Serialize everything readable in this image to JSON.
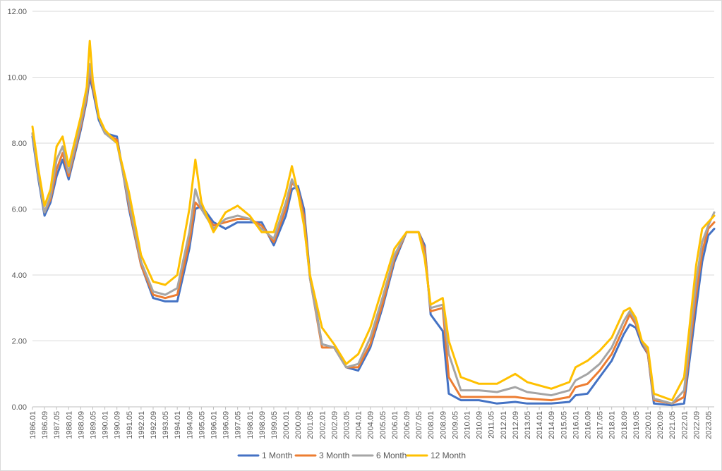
{
  "chart_data": {
    "type": "line",
    "title": "",
    "xlabel": "",
    "ylabel": "",
    "ylim": [
      0,
      12
    ],
    "yticks": [
      "0.00",
      "2.00",
      "4.00",
      "6.00",
      "8.00",
      "10.00",
      "12.00"
    ],
    "grid": "horizontal",
    "legend_position": "bottom",
    "x_start": "1986.01",
    "x_end": "2023.09",
    "xtick_labels": [
      "1986.01",
      "1986.09",
      "1987.05",
      "1988.01",
      "1988.09",
      "1989.05",
      "1990.01",
      "1990.09",
      "1991.05",
      "1992.01",
      "1992.09",
      "1993.05",
      "1994.01",
      "1994.09",
      "1995.05",
      "1996.01",
      "1996.09",
      "1997.05",
      "1998.01",
      "1998.09",
      "1999.05",
      "2000.01",
      "2000.09",
      "2001.05",
      "2002.01",
      "2002.09",
      "2003.05",
      "2004.01",
      "2004.09",
      "2005.05",
      "2006.01",
      "2006.09",
      "2007.05",
      "2008.01",
      "2008.09",
      "2009.05",
      "2010.01",
      "2010.09",
      "2011.05",
      "2012.01",
      "2012.09",
      "2013.05",
      "2014.01",
      "2014.09",
      "2015.05",
      "2016.01",
      "2016.09",
      "2017.05",
      "2018.01",
      "2018.09",
      "2019.05",
      "2020.01",
      "2020.09",
      "2021.05",
      "2022.01",
      "2022.09",
      "2023.05"
    ],
    "series": [
      {
        "name": "1 Month",
        "color": "#4472C4",
        "points": [
          [
            "1986.01",
            8.2
          ],
          [
            "1986.05",
            6.9
          ],
          [
            "1986.09",
            5.8
          ],
          [
            "1987.01",
            6.2
          ],
          [
            "1987.05",
            7.0
          ],
          [
            "1987.09",
            7.5
          ],
          [
            "1988.01",
            6.9
          ],
          [
            "1988.09",
            8.4
          ],
          [
            "1989.01",
            9.3
          ],
          [
            "1989.03",
            10.0
          ],
          [
            "1989.05",
            9.6
          ],
          [
            "1989.09",
            8.7
          ],
          [
            "1990.01",
            8.3
          ],
          [
            "1990.09",
            8.2
          ],
          [
            "1991.05",
            6.0
          ],
          [
            "1992.01",
            4.3
          ],
          [
            "1992.09",
            3.3
          ],
          [
            "1993.05",
            3.2
          ],
          [
            "1994.01",
            3.2
          ],
          [
            "1994.09",
            4.8
          ],
          [
            "1995.01",
            6.0
          ],
          [
            "1995.05",
            6.1
          ],
          [
            "1996.01",
            5.6
          ],
          [
            "1996.09",
            5.4
          ],
          [
            "1997.05",
            5.6
          ],
          [
            "1998.01",
            5.6
          ],
          [
            "1998.09",
            5.6
          ],
          [
            "1999.05",
            4.9
          ],
          [
            "2000.01",
            5.8
          ],
          [
            "2000.05",
            6.6
          ],
          [
            "2000.09",
            6.7
          ],
          [
            "2001.01",
            6.0
          ],
          [
            "2001.05",
            4.0
          ],
          [
            "2002.01",
            1.9
          ],
          [
            "2002.09",
            1.8
          ],
          [
            "2003.05",
            1.2
          ],
          [
            "2004.01",
            1.1
          ],
          [
            "2004.09",
            1.8
          ],
          [
            "2005.05",
            3.0
          ],
          [
            "2006.01",
            4.4
          ],
          [
            "2006.09",
            5.3
          ],
          [
            "2007.05",
            5.3
          ],
          [
            "2007.09",
            4.9
          ],
          [
            "2008.01",
            2.8
          ],
          [
            "2008.09",
            2.3
          ],
          [
            "2009.01",
            0.4
          ],
          [
            "2009.09",
            0.2
          ],
          [
            "2010.09",
            0.2
          ],
          [
            "2011.09",
            0.1
          ],
          [
            "2012.09",
            0.15
          ],
          [
            "2013.05",
            0.1
          ],
          [
            "2014.09",
            0.1
          ],
          [
            "2015.09",
            0.15
          ],
          [
            "2016.01",
            0.35
          ],
          [
            "2016.09",
            0.4
          ],
          [
            "2017.05",
            0.9
          ],
          [
            "2018.01",
            1.4
          ],
          [
            "2018.09",
            2.2
          ],
          [
            "2019.01",
            2.5
          ],
          [
            "2019.05",
            2.4
          ],
          [
            "2019.09",
            1.9
          ],
          [
            "2020.01",
            1.6
          ],
          [
            "2020.05",
            0.1
          ],
          [
            "2021.05",
            0.05
          ],
          [
            "2022.01",
            0.1
          ],
          [
            "2022.09",
            3.0
          ],
          [
            "2023.01",
            4.4
          ],
          [
            "2023.05",
            5.2
          ],
          [
            "2023.09",
            5.4
          ]
        ]
      },
      {
        "name": "3 Month",
        "color": "#ED7D31",
        "points": [
          [
            "1986.01",
            8.3
          ],
          [
            "1986.05",
            7.0
          ],
          [
            "1986.09",
            5.9
          ],
          [
            "1987.01",
            6.3
          ],
          [
            "1987.05",
            7.2
          ],
          [
            "1987.09",
            7.7
          ],
          [
            "1988.01",
            7.0
          ],
          [
            "1988.09",
            8.5
          ],
          [
            "1989.01",
            9.4
          ],
          [
            "1989.03",
            10.2
          ],
          [
            "1989.05",
            9.7
          ],
          [
            "1989.09",
            8.8
          ],
          [
            "1990.01",
            8.3
          ],
          [
            "1990.09",
            8.1
          ],
          [
            "1991.05",
            6.1
          ],
          [
            "1992.01",
            4.3
          ],
          [
            "1992.09",
            3.4
          ],
          [
            "1993.05",
            3.3
          ],
          [
            "1994.01",
            3.4
          ],
          [
            "1994.09",
            5.0
          ],
          [
            "1995.01",
            6.2
          ],
          [
            "1995.05",
            6.0
          ],
          [
            "1996.01",
            5.5
          ],
          [
            "1996.09",
            5.6
          ],
          [
            "1997.05",
            5.7
          ],
          [
            "1998.01",
            5.7
          ],
          [
            "1998.09",
            5.5
          ],
          [
            "1999.05",
            5.0
          ],
          [
            "2000.01",
            6.0
          ],
          [
            "2000.05",
            6.8
          ],
          [
            "2000.09",
            6.6
          ],
          [
            "2001.01",
            5.8
          ],
          [
            "2001.05",
            3.9
          ],
          [
            "2002.01",
            1.8
          ],
          [
            "2002.09",
            1.8
          ],
          [
            "2003.05",
            1.2
          ],
          [
            "2004.01",
            1.2
          ],
          [
            "2004.09",
            1.9
          ],
          [
            "2005.05",
            3.1
          ],
          [
            "2006.01",
            4.5
          ],
          [
            "2006.09",
            5.3
          ],
          [
            "2007.05",
            5.3
          ],
          [
            "2007.09",
            4.8
          ],
          [
            "2008.01",
            2.9
          ],
          [
            "2008.09",
            3.0
          ],
          [
            "2009.01",
            0.9
          ],
          [
            "2009.09",
            0.3
          ],
          [
            "2010.09",
            0.3
          ],
          [
            "2011.09",
            0.3
          ],
          [
            "2012.09",
            0.3
          ],
          [
            "2013.05",
            0.25
          ],
          [
            "2014.09",
            0.2
          ],
          [
            "2015.09",
            0.3
          ],
          [
            "2016.01",
            0.6
          ],
          [
            "2016.09",
            0.7
          ],
          [
            "2017.05",
            1.1
          ],
          [
            "2018.01",
            1.6
          ],
          [
            "2018.09",
            2.4
          ],
          [
            "2019.01",
            2.8
          ],
          [
            "2019.05",
            2.5
          ],
          [
            "2019.09",
            2.0
          ],
          [
            "2020.01",
            1.6
          ],
          [
            "2020.05",
            0.2
          ],
          [
            "2021.05",
            0.1
          ],
          [
            "2022.01",
            0.3
          ],
          [
            "2022.09",
            3.4
          ],
          [
            "2023.01",
            4.7
          ],
          [
            "2023.05",
            5.4
          ],
          [
            "2023.09",
            5.6
          ]
        ]
      },
      {
        "name": "6 Month",
        "color": "#A5A5A5",
        "points": [
          [
            "1986.01",
            8.3
          ],
          [
            "1986.05",
            7.0
          ],
          [
            "1986.09",
            5.9
          ],
          [
            "1987.01",
            6.4
          ],
          [
            "1987.05",
            7.5
          ],
          [
            "1987.09",
            7.9
          ],
          [
            "1988.01",
            7.1
          ],
          [
            "1988.09",
            8.6
          ],
          [
            "1989.01",
            9.5
          ],
          [
            "1989.03",
            10.4
          ],
          [
            "1989.05",
            9.8
          ],
          [
            "1989.09",
            8.8
          ],
          [
            "1990.01",
            8.3
          ],
          [
            "1990.09",
            8.0
          ],
          [
            "1991.05",
            6.2
          ],
          [
            "1992.01",
            4.4
          ],
          [
            "1992.09",
            3.5
          ],
          [
            "1993.05",
            3.4
          ],
          [
            "1994.01",
            3.6
          ],
          [
            "1994.09",
            5.3
          ],
          [
            "1995.01",
            6.6
          ],
          [
            "1995.05",
            6.0
          ],
          [
            "1996.01",
            5.4
          ],
          [
            "1996.09",
            5.7
          ],
          [
            "1997.05",
            5.8
          ],
          [
            "1998.01",
            5.7
          ],
          [
            "1998.09",
            5.4
          ],
          [
            "1999.05",
            5.1
          ],
          [
            "2000.01",
            6.2
          ],
          [
            "2000.05",
            6.9
          ],
          [
            "2000.09",
            6.5
          ],
          [
            "2001.01",
            5.6
          ],
          [
            "2001.05",
            3.9
          ],
          [
            "2002.01",
            1.9
          ],
          [
            "2002.09",
            1.8
          ],
          [
            "2003.05",
            1.2
          ],
          [
            "2004.01",
            1.3
          ],
          [
            "2004.09",
            2.1
          ],
          [
            "2005.05",
            3.3
          ],
          [
            "2006.01",
            4.6
          ],
          [
            "2006.09",
            5.3
          ],
          [
            "2007.05",
            5.3
          ],
          [
            "2007.09",
            4.6
          ],
          [
            "2008.01",
            3.0
          ],
          [
            "2008.09",
            3.1
          ],
          [
            "2009.01",
            1.6
          ],
          [
            "2009.09",
            0.5
          ],
          [
            "2010.09",
            0.5
          ],
          [
            "2011.09",
            0.45
          ],
          [
            "2012.09",
            0.6
          ],
          [
            "2013.05",
            0.45
          ],
          [
            "2014.09",
            0.35
          ],
          [
            "2015.09",
            0.5
          ],
          [
            "2016.01",
            0.8
          ],
          [
            "2016.09",
            1.0
          ],
          [
            "2017.05",
            1.3
          ],
          [
            "2018.01",
            1.8
          ],
          [
            "2018.09",
            2.6
          ],
          [
            "2019.01",
            2.9
          ],
          [
            "2019.05",
            2.6
          ],
          [
            "2019.09",
            2.0
          ],
          [
            "2020.01",
            1.7
          ],
          [
            "2020.05",
            0.25
          ],
          [
            "2021.05",
            0.1
          ],
          [
            "2022.01",
            0.5
          ],
          [
            "2022.09",
            3.8
          ],
          [
            "2023.01",
            5.0
          ],
          [
            "2023.05",
            5.5
          ],
          [
            "2023.09",
            5.9
          ]
        ]
      },
      {
        "name": "12 Month",
        "color": "#FFC000",
        "points": [
          [
            "1986.01",
            8.5
          ],
          [
            "1986.05",
            7.2
          ],
          [
            "1986.09",
            6.1
          ],
          [
            "1987.01",
            6.6
          ],
          [
            "1987.05",
            7.9
          ],
          [
            "1987.09",
            8.2
          ],
          [
            "1988.01",
            7.3
          ],
          [
            "1988.09",
            8.8
          ],
          [
            "1989.01",
            9.7
          ],
          [
            "1989.03",
            11.1
          ],
          [
            "1989.05",
            9.9
          ],
          [
            "1989.09",
            8.8
          ],
          [
            "1990.01",
            8.4
          ],
          [
            "1990.09",
            8.0
          ],
          [
            "1991.05",
            6.5
          ],
          [
            "1992.01",
            4.6
          ],
          [
            "1992.09",
            3.8
          ],
          [
            "1993.05",
            3.7
          ],
          [
            "1994.01",
            4.0
          ],
          [
            "1994.09",
            6.0
          ],
          [
            "1995.01",
            7.5
          ],
          [
            "1995.05",
            6.2
          ],
          [
            "1996.01",
            5.3
          ],
          [
            "1996.09",
            5.9
          ],
          [
            "1997.05",
            6.1
          ],
          [
            "1998.01",
            5.8
          ],
          [
            "1998.09",
            5.3
          ],
          [
            "1999.05",
            5.3
          ],
          [
            "2000.01",
            6.5
          ],
          [
            "2000.05",
            7.3
          ],
          [
            "2000.09",
            6.5
          ],
          [
            "2001.01",
            5.5
          ],
          [
            "2001.05",
            4.0
          ],
          [
            "2002.01",
            2.4
          ],
          [
            "2002.09",
            1.9
          ],
          [
            "2003.05",
            1.3
          ],
          [
            "2004.01",
            1.6
          ],
          [
            "2004.09",
            2.4
          ],
          [
            "2005.05",
            3.6
          ],
          [
            "2006.01",
            4.8
          ],
          [
            "2006.09",
            5.3
          ],
          [
            "2007.05",
            5.3
          ],
          [
            "2007.09",
            4.5
          ],
          [
            "2008.01",
            3.1
          ],
          [
            "2008.09",
            3.3
          ],
          [
            "2009.01",
            2.0
          ],
          [
            "2009.09",
            0.9
          ],
          [
            "2010.09",
            0.7
          ],
          [
            "2011.09",
            0.7
          ],
          [
            "2012.09",
            1.0
          ],
          [
            "2013.05",
            0.75
          ],
          [
            "2014.09",
            0.55
          ],
          [
            "2015.09",
            0.75
          ],
          [
            "2016.01",
            1.2
          ],
          [
            "2016.09",
            1.4
          ],
          [
            "2017.05",
            1.7
          ],
          [
            "2018.01",
            2.1
          ],
          [
            "2018.09",
            2.9
          ],
          [
            "2019.01",
            3.0
          ],
          [
            "2019.05",
            2.7
          ],
          [
            "2019.09",
            2.0
          ],
          [
            "2020.01",
            1.8
          ],
          [
            "2020.05",
            0.4
          ],
          [
            "2021.05",
            0.2
          ],
          [
            "2022.01",
            0.9
          ],
          [
            "2022.09",
            4.3
          ],
          [
            "2023.01",
            5.4
          ],
          [
            "2023.05",
            5.6
          ],
          [
            "2023.09",
            5.8
          ]
        ]
      }
    ]
  }
}
